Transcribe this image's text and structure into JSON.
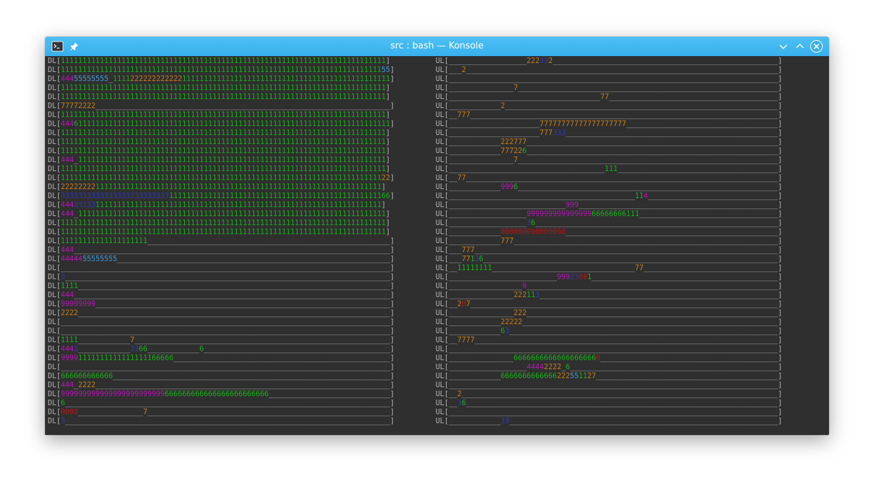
{
  "window": {
    "title": "src : bash — Konsole",
    "icons": {
      "app": "terminal-icon",
      "pin": "pin-icon",
      "minimize": "chevron-down-icon",
      "maximize": "chevron-up-icon",
      "close": "close-icon"
    },
    "accent_color": "#3daee9"
  },
  "terminal": {
    "width_chars": 76,
    "default_color": "#b4b4b4",
    "palette": {
      "1": "#18b218",
      "2": "#c97f1a",
      "3": "#2f3bb8",
      "4": "#b218b2",
      "5": "#3d9fe0",
      "6": "#18b218",
      "7": "#c97f1a",
      "8": "#b21818",
      "9": "#b218b2",
      "0": "#b21818",
      "_": "#b4b4b4"
    },
    "left_prefix": "DL[",
    "right_prefix": "UL[",
    "suffix": "]",
    "left_lines": [
      "111111111111111111111111111111111111111111111111111111111111111111111111111",
      "1111111111111111111111111111111111111111111111111111111111111111111111111155_",
      "44455555555_1111222222222222111111111111111111111111111111111111111111111111",
      "111111111111111111111111111111111111111111111111111111111111111111111111111",
      "111111111111111111111111111111111111111111111111111111111111111111111111111",
      "77772222_",
      "111111111111111111111111111111111111111111111111111111111111111111111111111",
      "4446111111111111111111111111111111111111111111111111111111111111111111111111",
      "111111111111111111111111111111111111111111111111111111111111111111111111111",
      "111111111111111111111111111111111111111111111111111111111111111111111111111",
      "111111111111111111111111111111111111111111111111111111111111111111111111111",
      "444_11111111111111111111111111111111111111111111111111111111111111111111111",
      "111111111111111111111111111111111111111111111111111111111111111111111111111",
      "1111111111111111111111111111111111111111111111111111111111111111111111111122_",
      "22222222111111111111111111111111111111111111111111111111111111111111111111",
      "3333333333333333333333333111111111111111111111111111111111111111111111111166_",
      "44433333111111111111111111111111111111111111111111111111111111111111111111",
      "444_11111111111111111111111111111111111111111111111111111111111111111111111",
      "111111111111111111111111111111111111111111111111111111111111111111111111111",
      "111111111111111111111111111111111111111111111111111111111111111111111111111",
      "11111111111111111111_",
      "444_",
      "4444455555555_",
      "_",
      "3_",
      "1111_",
      "444_",
      "99999999_",
      "2222_",
      "_",
      "_",
      "1111____________7_",
      "4443____________3366____________6_",
      "99991111111111111111166666_",
      "_",
      "666666666666_",
      "444_2222_",
      "999999999999999999999999666666666666666666666666_",
      "6_",
      "0000_______________7_",
      "3_"
    ],
    "right_lines": [
      "__________________222332_",
      "___2_",
      "_",
      "_______________7_",
      "___________________________________77_",
      "____________2_",
      "__777_",
      "_____________________77777777777777777777_",
      "_____________________777333_",
      "____________222777_",
      "____________777226_",
      "_______________7_",
      "____________________________________111_",
      "__77_",
      "____________9996_",
      "___________________________________________114_",
      "___________________________999_",
      "__________________99999999999999966666666111_",
      "__________________36_",
      "____________000000000000000_",
      "____________777_",
      "___777_",
      "___77136_",
      "__11111111_________________________________77_",
      "_________________________99933081_",
      "_________________9_",
      "_______________222113_",
      "__207_",
      "_______________222_",
      "____________22222_",
      "____________63_",
      "__7777_",
      "_",
      "_______________66666666666666666660_",
      "__________________44442222_6_",
      "____________6666666666666222551127_",
      "_",
      "__2_",
      "__36_",
      "_",
      "____________33_"
    ]
  }
}
